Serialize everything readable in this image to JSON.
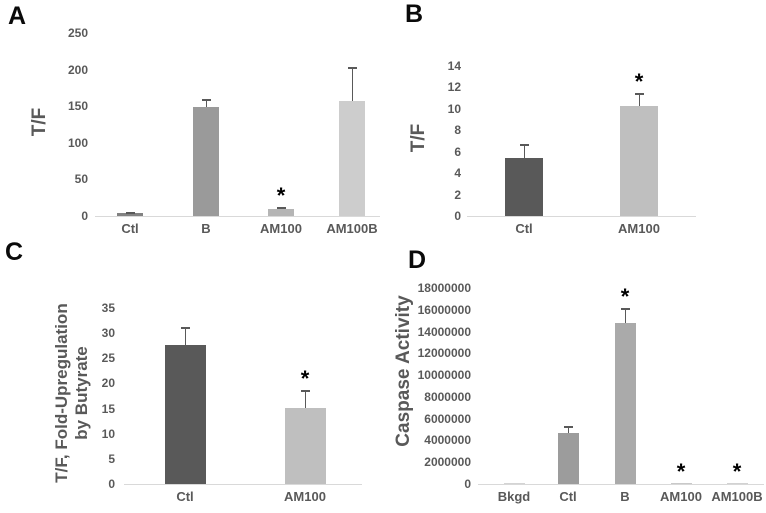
{
  "figure": {
    "background": "#ffffff",
    "text_color": "#595959",
    "axis_line_color": "#d9d9d9",
    "significance_marker": "*"
  },
  "chart_data": [
    {
      "panel_letter": "A",
      "type": "bar",
      "title": "",
      "xlabel": "",
      "ylabel": "T/F",
      "categories": [
        "Ctl",
        "B",
        "AM100",
        "AM100B"
      ],
      "values": [
        4.5,
        149,
        9.5,
        157
      ],
      "errors_up": [
        1.5,
        11,
        3,
        46
      ],
      "significance": [
        "",
        "",
        "*",
        ""
      ],
      "bar_colors": [
        "#828282",
        "#9a9a9a",
        "#b5b5b5",
        "#cdcdcd"
      ],
      "yticks": [
        0,
        50,
        100,
        150,
        200,
        250
      ],
      "ylim": [
        0,
        250
      ],
      "grid": false,
      "legend": false
    },
    {
      "panel_letter": "B",
      "type": "bar",
      "title": "",
      "xlabel": "",
      "ylabel": "T/F",
      "categories": [
        "Ctl",
        "AM100"
      ],
      "values": [
        5.4,
        10.3
      ],
      "errors_up": [
        1.3,
        1.2
      ],
      "significance": [
        "",
        "*"
      ],
      "bar_colors": [
        "#595959",
        "#bfbfbf"
      ],
      "yticks": [
        0,
        2,
        4,
        6,
        8,
        10,
        12,
        14
      ],
      "ylim": [
        0,
        14
      ],
      "grid": false,
      "legend": false
    },
    {
      "panel_letter": "C",
      "type": "bar",
      "title": "",
      "xlabel": "",
      "ylabel": "T/F, Fold-Upregulation by Butyrate",
      "ylabel_lines": [
        "T/F, Fold-Upregulation",
        "by Butyrate"
      ],
      "categories": [
        "Ctl",
        "AM100"
      ],
      "values": [
        27.7,
        15.2
      ],
      "errors_up": [
        3.6,
        3.5
      ],
      "significance": [
        "",
        "*"
      ],
      "bar_colors": [
        "#595959",
        "#bfbfbf"
      ],
      "yticks": [
        0,
        5,
        10,
        15,
        20,
        25,
        30,
        35
      ],
      "ylim": [
        0,
        35
      ],
      "grid": false,
      "legend": false
    },
    {
      "panel_letter": "D",
      "type": "bar",
      "title": "",
      "xlabel": "",
      "ylabel": "Caspase Activity",
      "categories": [
        "Bkgd",
        "Ctl",
        "B",
        "AM100",
        "AM100B"
      ],
      "values": [
        120000,
        4650000,
        14800000,
        60000,
        60000
      ],
      "errors_up": [
        0,
        700000,
        1400000,
        0,
        0
      ],
      "significance": [
        "",
        "",
        "*",
        "*",
        "*"
      ],
      "bar_colors": [
        "#d4d4d4",
        "#9c9c9c",
        "#aaaaaa",
        "#c9c9c9",
        "#d2d2d2"
      ],
      "yticks": [
        0,
        2000000,
        4000000,
        6000000,
        8000000,
        10000000,
        12000000,
        14000000,
        16000000,
        18000000
      ],
      "ylim": [
        0,
        18000000
      ],
      "grid": false,
      "legend": false
    }
  ]
}
